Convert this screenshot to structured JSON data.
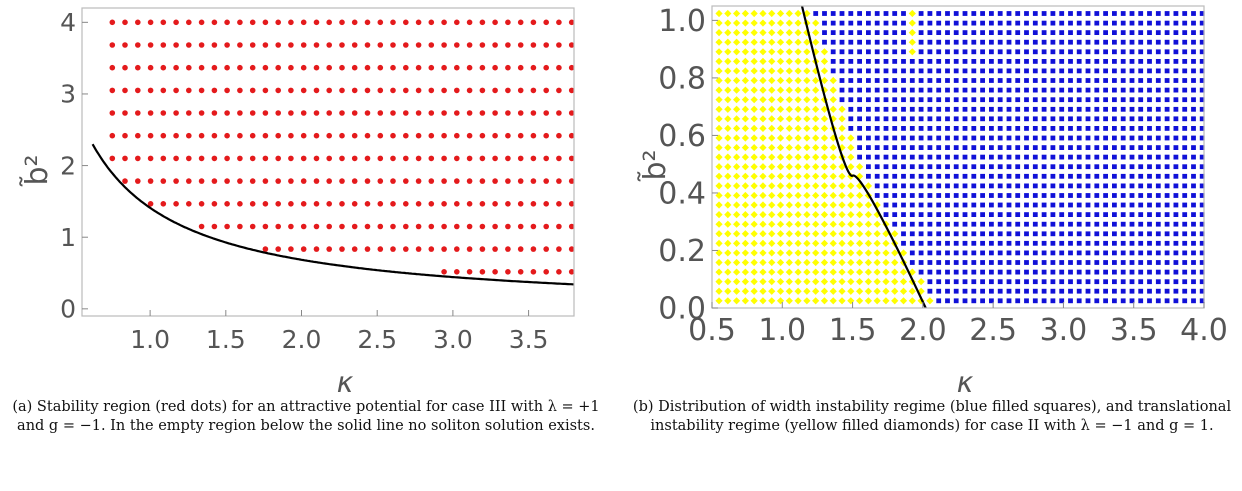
{
  "chart_data": [
    {
      "type": "scatter",
      "title": "",
      "xlabel": "κ",
      "ylabel": "b̃²",
      "xlim": [
        0.55,
        3.8
      ],
      "ylim": [
        -0.1,
        4.2
      ],
      "x_ticks": [
        1.0,
        1.5,
        2.0,
        2.5,
        3.0,
        3.5
      ],
      "x_tick_labels": [
        "1.0",
        "1.5",
        "2.0",
        "2.5",
        "3.0",
        "3.5"
      ],
      "y_ticks": [
        0,
        1,
        2,
        3,
        4
      ],
      "y_tick_labels": [
        "0",
        "1",
        "2",
        "3",
        "4"
      ],
      "grid": false,
      "series": [
        {
          "marker": "circle",
          "color": "#e41a1c",
          "grid_x": {
            "start": 0.75,
            "step": 0.0843,
            "count": 37
          },
          "grid_y": {
            "start": 0.2,
            "step": 0.3167,
            "count": 13
          },
          "region": "points above the boundary curve"
        }
      ],
      "boundary_curve": {
        "formula": "y = 1.45/x - 0.04",
        "color": "#000000",
        "style": "solid"
      },
      "caption": "(a) Stability region (red dots) for an attractive potential for case III with λ = +1 and g = −1. In the empty region below the solid line no soliton solution exists."
    },
    {
      "type": "scatter",
      "title": "",
      "xlabel": "κ",
      "ylabel": "b̃²",
      "xlim": [
        0.5,
        4.0
      ],
      "ylim": [
        0.0,
        1.05
      ],
      "x_ticks": [
        0.5,
        1.0,
        1.5,
        2.0,
        2.5,
        3.0,
        3.5,
        4.0
      ],
      "x_tick_labels": [
        "0.5",
        "1.0",
        "1.5",
        "2.0",
        "2.5",
        "3.0",
        "3.5",
        "4.0"
      ],
      "y_ticks": [
        0.0,
        0.2,
        0.4,
        0.6,
        0.8,
        1.0
      ],
      "y_tick_labels": [
        "0.0",
        "0.2",
        "0.4",
        "0.6",
        "0.8",
        "1.0"
      ],
      "grid": false,
      "series": [
        {
          "marker": "square",
          "color": "#1010d8",
          "region": "width instability regime (right of boundary)"
        },
        {
          "marker": "diamond",
          "color": "#ffff00",
          "region": "translational instability regime (left of boundary)"
        }
      ],
      "point_grid": {
        "x": {
          "start": 0.55,
          "step": 0.0625,
          "count": 56
        },
        "y": {
          "start": 0.025,
          "step": 0.0333,
          "count": 31
        }
      },
      "boundary_curve": {
        "points": [
          [
            1.14,
            1.05
          ],
          [
            1.5,
            0.46
          ],
          [
            2.02,
            0.0
          ]
        ],
        "color": "#000000",
        "style": "solid"
      },
      "caption": "(b) Distribution of width instability regime (blue filled squares), and translational instability regime (yellow filled diamonds) for case II with λ = −1 and g = 1."
    }
  ]
}
